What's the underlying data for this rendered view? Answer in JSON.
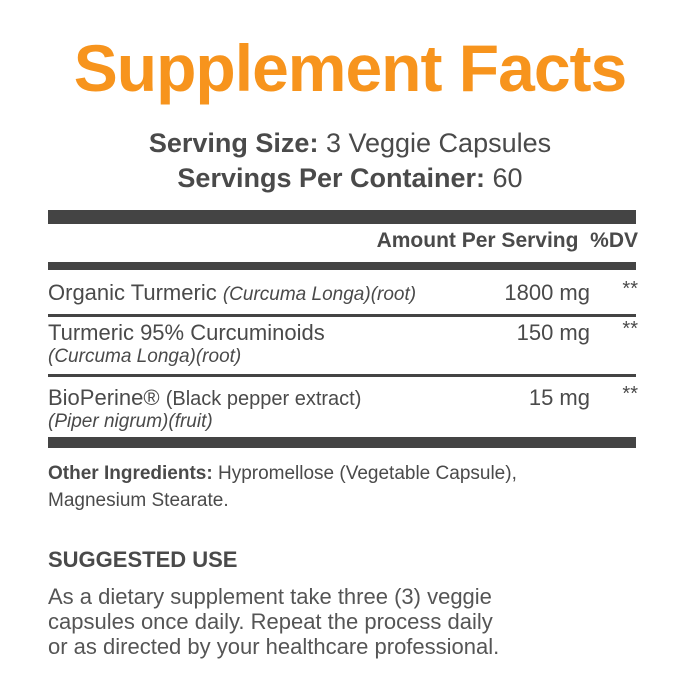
{
  "title": "Supplement Facts",
  "serving_size": {
    "label": "Serving Size:",
    "value": "3 Veggie Capsules"
  },
  "servings_per_container": {
    "label": "Servings Per Container:",
    "value": "60"
  },
  "table": {
    "header_amount": "Amount Per Serving",
    "header_dv": "%DV",
    "rows": [
      {
        "name": "Organic Turmeric",
        "inline_note": "(Curcuma Longa)(root)",
        "sub": "",
        "amount": "1800 mg",
        "dv": "**"
      },
      {
        "name": "Turmeric 95% Curcuminoids",
        "inline_note": "",
        "sub": "(Curcuma Longa)(root)",
        "amount": "150 mg",
        "dv": "**"
      },
      {
        "name": "BioPerine®",
        "inline_note": "(Black pepper extract)",
        "sub": "(Piper nigrum)(fruit)",
        "amount": "15 mg",
        "dv": "**"
      }
    ]
  },
  "other_ingredients": {
    "label": "Other Ingredients:",
    "line1": "Hypromellose (Vegetable Capsule),",
    "line2": "Magnesium Stearate."
  },
  "suggested_use": {
    "heading": "SUGGESTED USE",
    "lines": [
      "As a dietary supplement take three (3) veggie",
      "capsules once daily. Repeat the process daily",
      "or as directed by your healthcare professional."
    ]
  },
  "colors": {
    "title": "#f7941d",
    "text": "#4a4a4a",
    "rule": "#444444"
  }
}
